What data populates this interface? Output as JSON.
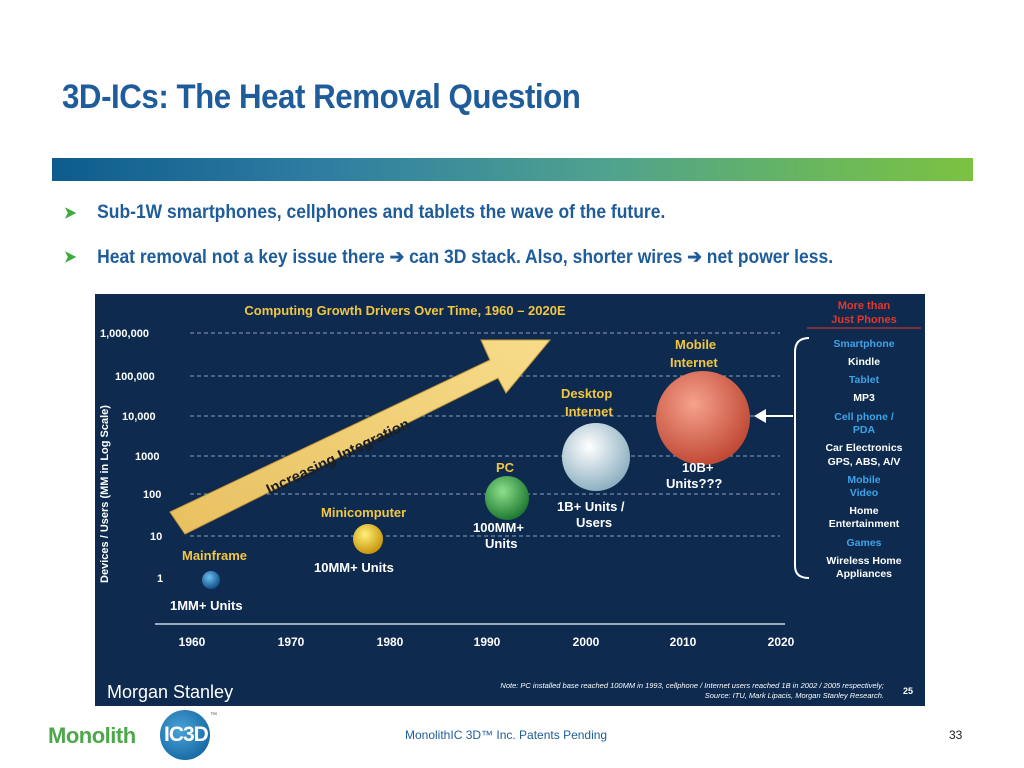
{
  "slide": {
    "title": "3D-ICs: The Heat Removal Question",
    "bullets": [
      {
        "text": "Sub-1W smartphones, cellphones and tablets the wave of the future."
      },
      {
        "part1": "Heat removal not a key issue there ",
        "part2": " can 3D stack. Also, shorter wires ",
        "part3": " net power less."
      }
    ],
    "footer": "MonolithIC 3D™ Inc. Patents Pending",
    "page_number": "33",
    "logo": {
      "word": "Monolith",
      "badge": "IC3D",
      "tm": "™"
    }
  },
  "figure": {
    "title": "Computing Growth Drivers Over Time, 1960 – 2020E",
    "ylabel": "Devices / Users (MM in Log Scale)",
    "y_ticks": [
      "1,000,000",
      "100,000",
      "10,000",
      "1000",
      "100",
      "10",
      "1"
    ],
    "x_ticks": [
      "1960",
      "1970",
      "1980",
      "1990",
      "2000",
      "2010",
      "2020"
    ],
    "arrow_label": "Increasing Integration",
    "eras": [
      {
        "name": "Mainframe",
        "units": "1MM+ Units",
        "color": "#1f6fb0"
      },
      {
        "name": "Minicomputer",
        "units": "10MM+ Units",
        "color": "#e8b812"
      },
      {
        "name": "PC",
        "units_l1": "100MM+",
        "units_l2": "Units",
        "color": "#3aa84a"
      },
      {
        "name_l1": "Desktop",
        "name_l2": "Internet",
        "units_l1": "1B+ Units /",
        "units_l2": "Users",
        "color": "#c8dde6"
      },
      {
        "name_l1": "Mobile",
        "name_l2": "Internet",
        "units_l1": "10B+",
        "units_l2": "Units???",
        "color": "#e0705a"
      }
    ],
    "side_title_l1": "More than",
    "side_title_l2": "Just Phones",
    "side_items": [
      {
        "text": "Smartphone",
        "color": "#3ea3e8"
      },
      {
        "text": "Kindle",
        "color": "#ffffff"
      },
      {
        "text": "Tablet",
        "color": "#3ea3e8"
      },
      {
        "text": "MP3",
        "color": "#ffffff"
      },
      {
        "text": "Cell phone /",
        "color": "#3ea3e8"
      },
      {
        "text": "PDA",
        "color": "#3ea3e8"
      },
      {
        "text": "Car Electronics",
        "color": "#ffffff"
      },
      {
        "text": "GPS, ABS, A/V",
        "color": "#ffffff"
      },
      {
        "text": "Mobile",
        "color": "#3ea3e8"
      },
      {
        "text": "Video",
        "color": "#3ea3e8"
      },
      {
        "text": "Home",
        "color": "#ffffff"
      },
      {
        "text": "Entertainment",
        "color": "#ffffff"
      },
      {
        "text": "Games",
        "color": "#3ea3e8"
      },
      {
        "text": "Wireless Home",
        "color": "#ffffff"
      },
      {
        "text": "Appliances",
        "color": "#ffffff"
      }
    ],
    "brand": "Morgan Stanley",
    "note_l1": "Note: PC installed base reached 100MM in 1993, cellphone / Internet users reached 1B in 2002 / 2005 respectively;",
    "note_l2": "Source: ITU, Mark Lipacis, Morgan Stanley Research.",
    "fig_page": "25"
  }
}
